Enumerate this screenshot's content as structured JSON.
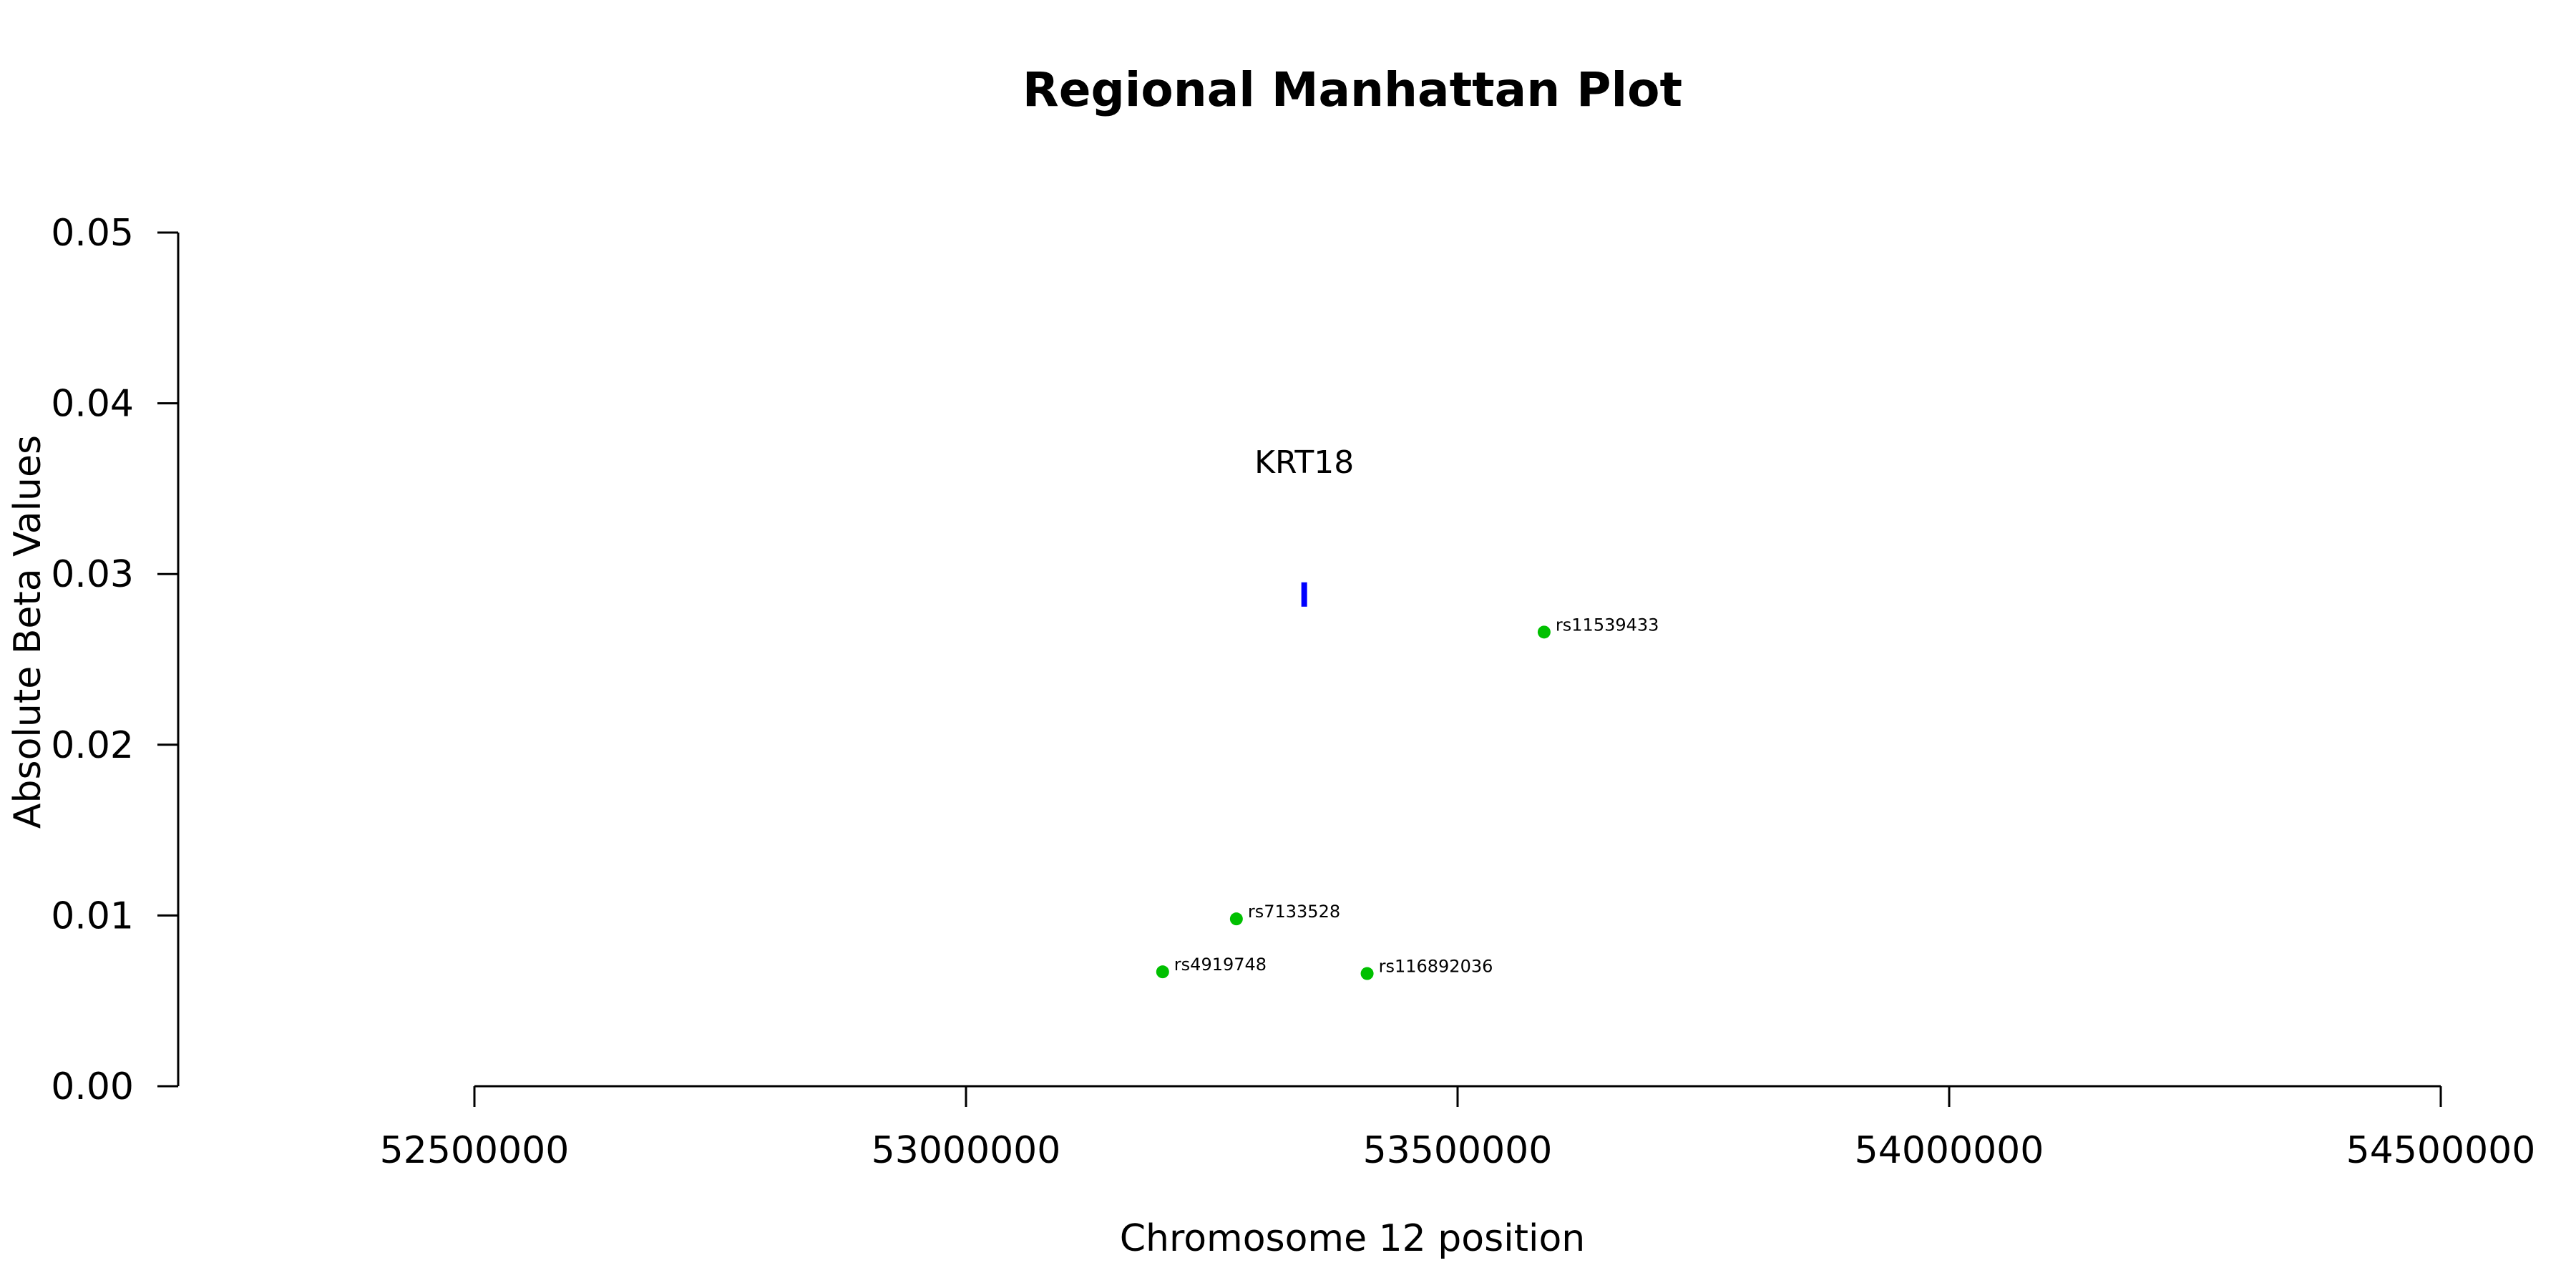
{
  "chart_data": {
    "type": "scatter",
    "title": "Regional Manhattan Plot",
    "xlabel": "Chromosome 12 position",
    "ylabel": "Absolute Beta Values",
    "xlim": [
      52500000,
      54500000
    ],
    "ylim": [
      0,
      0.05
    ],
    "x_ticks": [
      52500000,
      53000000,
      53500000,
      54000000,
      54500000
    ],
    "x_tick_labels": [
      "52500000",
      "53000000",
      "53500000",
      "54000000",
      "54500000"
    ],
    "y_ticks": [
      0,
      0.01,
      0.02,
      0.03,
      0.04,
      0.05
    ],
    "y_tick_labels": [
      "0.00",
      "0.01",
      "0.02",
      "0.03",
      "0.04",
      "0.05"
    ],
    "grid": false,
    "point_color": "#00c000",
    "gene_color": "#0000ff",
    "points": [
      {
        "label": "rs4919748",
        "x": 53200000,
        "y": 0.0067
      },
      {
        "label": "rs7133528",
        "x": 53275000,
        "y": 0.0098
      },
      {
        "label": "rs116892036",
        "x": 53408000,
        "y": 0.0066
      },
      {
        "label": "rs11539433",
        "x": 53588000,
        "y": 0.0266
      }
    ],
    "genes": [
      {
        "name": "KRT18",
        "x_start": 53342000,
        "x_end": 53346000,
        "y": 0.0288
      }
    ]
  }
}
